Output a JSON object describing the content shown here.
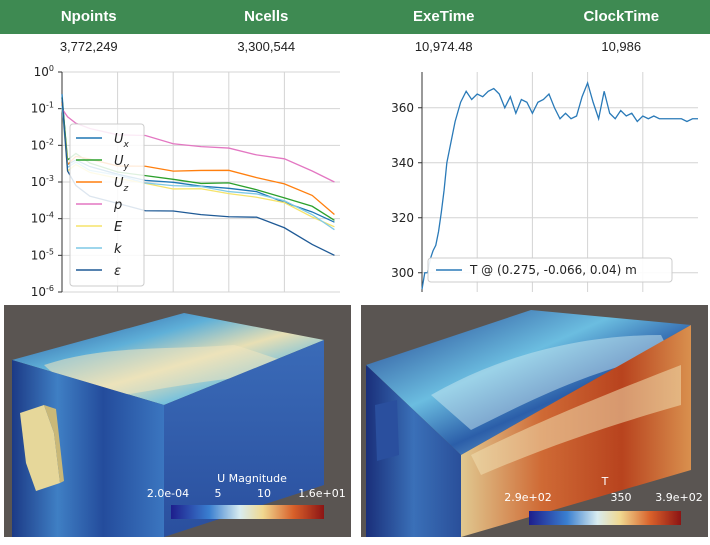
{
  "summary": {
    "headers": [
      "Npoints",
      "Ncells",
      "ExeTime",
      "ClockTime"
    ],
    "values": [
      "3,772,249",
      "3,300,544",
      "10,974.48",
      "10,986"
    ]
  },
  "colors": {
    "header_bg": "#3e8a52",
    "view_bg": "#5a5552",
    "plot_line": "#2a7ab8"
  },
  "chart_data": [
    {
      "type": "line",
      "title": "",
      "xlabel": "",
      "ylabel": "",
      "yscale": "log",
      "ylim": [
        1e-06,
        1
      ],
      "xlim": [
        0,
        100
      ],
      "ytick_labels": [
        "10^0",
        "10^-1",
        "10^-2",
        "10^-3",
        "10^-4",
        "10^-5",
        "10^-6"
      ],
      "legend_position": "left",
      "series": [
        {
          "name": "U_x",
          "sym": "U",
          "sub": "x",
          "color": "#1f77b4",
          "x": [
            0,
            2,
            5,
            10,
            20,
            30,
            40,
            50,
            60,
            70,
            80,
            90,
            98
          ],
          "y": [
            0.25,
            0.003,
            0.004,
            0.0025,
            0.0016,
            0.0012,
            0.0009,
            0.0008,
            0.0007,
            0.0005,
            0.0003,
            0.00015,
            8e-05
          ]
        },
        {
          "name": "U_y",
          "sym": "U",
          "sub": "y",
          "color": "#2ca02c",
          "x": [
            0,
            2,
            5,
            10,
            20,
            30,
            40,
            50,
            60,
            70,
            80,
            90,
            98
          ],
          "y": [
            0.2,
            0.004,
            0.006,
            0.003,
            0.002,
            0.0015,
            0.0011,
            0.001,
            0.0009,
            0.0006,
            0.0004,
            0.0002,
            9e-05
          ]
        },
        {
          "name": "U_z",
          "sym": "U",
          "sub": "z",
          "color": "#ff7f0e",
          "x": [
            0,
            2,
            5,
            10,
            20,
            30,
            40,
            50,
            60,
            70,
            80,
            90,
            98
          ],
          "y": [
            0.15,
            0.003,
            0.005,
            0.004,
            0.003,
            0.0025,
            0.002,
            0.0022,
            0.0019,
            0.0014,
            0.0009,
            0.0004,
            0.00013
          ]
        },
        {
          "name": "p",
          "sym": "p",
          "sub": "",
          "color": "#e377c2",
          "x": [
            0,
            2,
            5,
            10,
            20,
            30,
            40,
            50,
            60,
            70,
            80,
            90,
            98
          ],
          "y": [
            0.1,
            0.06,
            0.04,
            0.03,
            0.02,
            0.017,
            0.012,
            0.009,
            0.008,
            0.006,
            0.004,
            0.002,
            0.001
          ]
        },
        {
          "name": "E",
          "sym": "E",
          "sub": "",
          "color": "#f5e36a",
          "x": [
            0,
            2,
            5,
            10,
            20,
            30,
            40,
            50,
            60,
            70,
            80,
            90,
            98
          ],
          "y": [
            0.12,
            0.002,
            0.003,
            0.002,
            0.0012,
            0.0009,
            0.0007,
            0.0006,
            0.0005,
            0.0004,
            0.00025,
            0.00012,
            6e-05
          ]
        },
        {
          "name": "k",
          "sym": "k",
          "sub": "",
          "color": "#7fc9e6",
          "x": [
            0,
            2,
            5,
            10,
            20,
            30,
            40,
            50,
            60,
            70,
            80,
            90,
            98
          ],
          "y": [
            0.12,
            0.0025,
            0.0035,
            0.0022,
            0.0014,
            0.001,
            0.0008,
            0.0007,
            0.0006,
            0.00045,
            0.0003,
            0.00014,
            5e-05
          ]
        },
        {
          "name": "ε",
          "sym": "ε",
          "sub": "",
          "color": "#1f5a96",
          "x": [
            0,
            2,
            5,
            10,
            20,
            30,
            40,
            50,
            60,
            70,
            80,
            90,
            98
          ],
          "y": [
            0.2,
            0.002,
            0.0008,
            0.0004,
            0.00025,
            0.00018,
            0.00015,
            0.00013,
            0.00012,
            0.0001,
            6e-05,
            2e-05,
            1e-05
          ]
        }
      ]
    },
    {
      "type": "line",
      "title": "",
      "xlabel": "",
      "ylabel": "",
      "ylim": [
        293,
        373
      ],
      "xlim": [
        0,
        100
      ],
      "ytick_labels": [
        "360",
        "340",
        "320",
        "300"
      ],
      "yticks": [
        360,
        340,
        320,
        300
      ],
      "legend_position": "bottom",
      "series": [
        {
          "name": "T @ (0.275, -0.066, 0.04) m",
          "color": "#2a7ab8",
          "x": [
            0,
            1,
            2,
            3,
            4,
            5,
            6,
            7,
            8,
            9,
            10,
            12,
            14,
            16,
            18,
            20,
            22,
            24,
            26,
            28,
            30,
            32,
            34,
            36,
            38,
            40,
            42,
            44,
            46,
            48,
            50,
            52,
            54,
            56,
            58,
            60,
            62,
            64,
            66,
            68,
            70,
            72,
            74,
            76,
            78,
            80,
            82,
            84,
            86,
            88,
            90,
            92,
            94,
            96,
            98,
            100
          ],
          "y": [
            294,
            300,
            300,
            305,
            308,
            310,
            315,
            322,
            330,
            340,
            345,
            355,
            362,
            366,
            363,
            365,
            364,
            366,
            367,
            365,
            360,
            364,
            358,
            363,
            362,
            358,
            362,
            363,
            365,
            360,
            356,
            358,
            356,
            357,
            364,
            369,
            362,
            356,
            366,
            358,
            356,
            359,
            357,
            358,
            355,
            357,
            356,
            357,
            356,
            356,
            356,
            356,
            356,
            355,
            356,
            356
          ]
        }
      ]
    }
  ],
  "colorbars": [
    {
      "title": "U Magnitude",
      "labels": [
        "2.0e-04",
        "5",
        "10",
        "1.6e+01"
      ]
    },
    {
      "title": "T",
      "labels": [
        "2.9e+02",
        "350",
        "3.9e+02"
      ]
    }
  ]
}
